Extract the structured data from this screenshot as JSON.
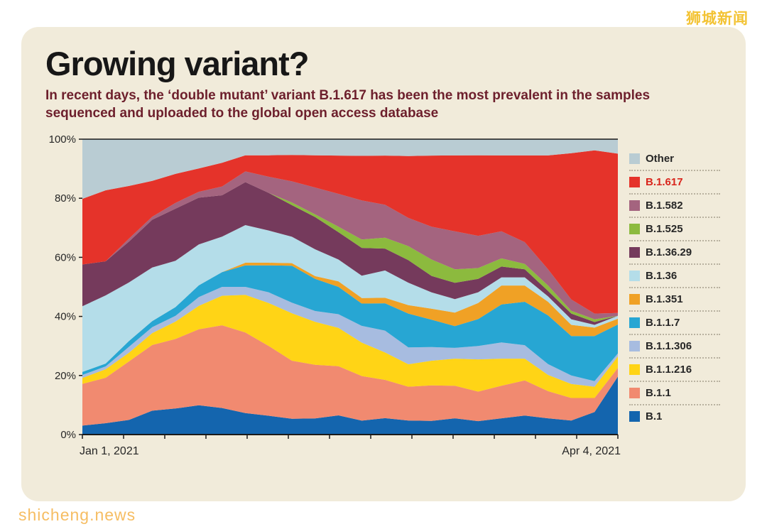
{
  "watermarks": {
    "top_right": "狮城新闻",
    "bottom_left": "shicheng.news"
  },
  "card": {
    "title": "Growing variant?",
    "subtitle": "In recent days, the ‘double mutant’ variant B.1.617 has been the most prevalent in the samples sequenced and uploaded to the global open access database"
  },
  "chart_data": {
    "type": "area",
    "stacked": true,
    "percent": true,
    "title": "Growing variant?",
    "xlabel": "",
    "ylabel": "",
    "ylim": [
      0,
      100
    ],
    "x_start_label": "Jan 1, 2021",
    "x_end_label": "Apr 4, 2021",
    "y_ticks": [
      0,
      20,
      40,
      60,
      80,
      100
    ],
    "y_tick_labels": [
      "0%",
      "20%",
      "40%",
      "60%",
      "80%",
      "100%"
    ],
    "legend_position": "right",
    "highlight_series": "B.1.617",
    "highlight_color": "#d9251c",
    "series": [
      {
        "name": "Other",
        "color": "#b9ccd3",
        "values": [
          20,
          18,
          16,
          14,
          12,
          10,
          8,
          6,
          6,
          6,
          6,
          6,
          6,
          6,
          6,
          6,
          6,
          6,
          6,
          6,
          6,
          5,
          4,
          5
        ]
      },
      {
        "name": "B.1.617",
        "color": "#e5332a",
        "values": [
          22,
          25,
          18,
          12,
          10,
          8,
          8,
          6,
          8,
          10,
          12,
          14,
          16,
          18,
          22,
          26,
          28,
          30,
          28,
          32,
          42,
          52,
          58,
          55
        ]
      },
      {
        "name": "B.1.582",
        "color": "#a4647f",
        "values": [
          0,
          0,
          1,
          1,
          2,
          2,
          3,
          4,
          6,
          8,
          10,
          12,
          14,
          12,
          10,
          12,
          14,
          12,
          10,
          8,
          6,
          4,
          2,
          1
        ]
      },
      {
        "name": "B.1.525",
        "color": "#8cba3e",
        "values": [
          0,
          0,
          0,
          0,
          0,
          0,
          0,
          0,
          0,
          1,
          1,
          2,
          3,
          4,
          5,
          6,
          5,
          4,
          3,
          2,
          2,
          1,
          1,
          0
        ]
      },
      {
        "name": "B.1.36.29",
        "color": "#753a5c",
        "values": [
          14,
          12,
          14,
          16,
          18,
          16,
          14,
          16,
          14,
          12,
          12,
          10,
          10,
          8,
          8,
          6,
          6,
          5,
          4,
          3,
          2,
          2,
          1,
          0
        ]
      },
      {
        "name": "B.1.36",
        "color": "#b4dde9",
        "values": [
          22,
          24,
          20,
          18,
          16,
          14,
          12,
          14,
          12,
          10,
          10,
          8,
          8,
          10,
          8,
          6,
          5,
          4,
          3,
          3,
          2,
          2,
          1,
          1
        ]
      },
      {
        "name": "B.1.351",
        "color": "#f0a125",
        "values": [
          0,
          0,
          0,
          0,
          0,
          0,
          0,
          1,
          1,
          1,
          1,
          2,
          2,
          2,
          3,
          4,
          5,
          6,
          7,
          6,
          5,
          4,
          3,
          2
        ]
      },
      {
        "name": "B.1.1.7",
        "color": "#27a6d3",
        "values": [
          1,
          1,
          2,
          2,
          3,
          4,
          5,
          8,
          10,
          14,
          12,
          10,
          8,
          10,
          12,
          10,
          8,
          10,
          14,
          16,
          18,
          14,
          16,
          10
        ]
      },
      {
        "name": "B.1.1.306",
        "color": "#a7bce0",
        "values": [
          1,
          1,
          2,
          2,
          2,
          3,
          3,
          3,
          4,
          4,
          4,
          5,
          6,
          8,
          6,
          5,
          4,
          5,
          6,
          5,
          4,
          3,
          2,
          1
        ]
      },
      {
        "name": "B.1.1.216",
        "color": "#ffd416",
        "values": [
          2,
          3,
          3,
          4,
          6,
          8,
          10,
          14,
          16,
          18,
          16,
          14,
          12,
          10,
          8,
          9,
          10,
          12,
          10,
          8,
          6,
          5,
          4,
          4
        ]
      },
      {
        "name": "B.1.1",
        "color": "#f18a70",
        "values": [
          14,
          16,
          20,
          22,
          24,
          26,
          28,
          30,
          26,
          22,
          20,
          18,
          16,
          14,
          12,
          13,
          12,
          11,
          12,
          13,
          10,
          8,
          5,
          3
        ]
      },
      {
        "name": "B.1",
        "color": "#1465ae",
        "values": [
          3,
          4,
          5,
          8,
          9,
          10,
          9,
          8,
          7,
          6,
          6,
          7,
          5,
          6,
          5,
          5,
          6,
          5,
          6,
          7,
          6,
          5,
          8,
          20
        ]
      }
    ]
  }
}
